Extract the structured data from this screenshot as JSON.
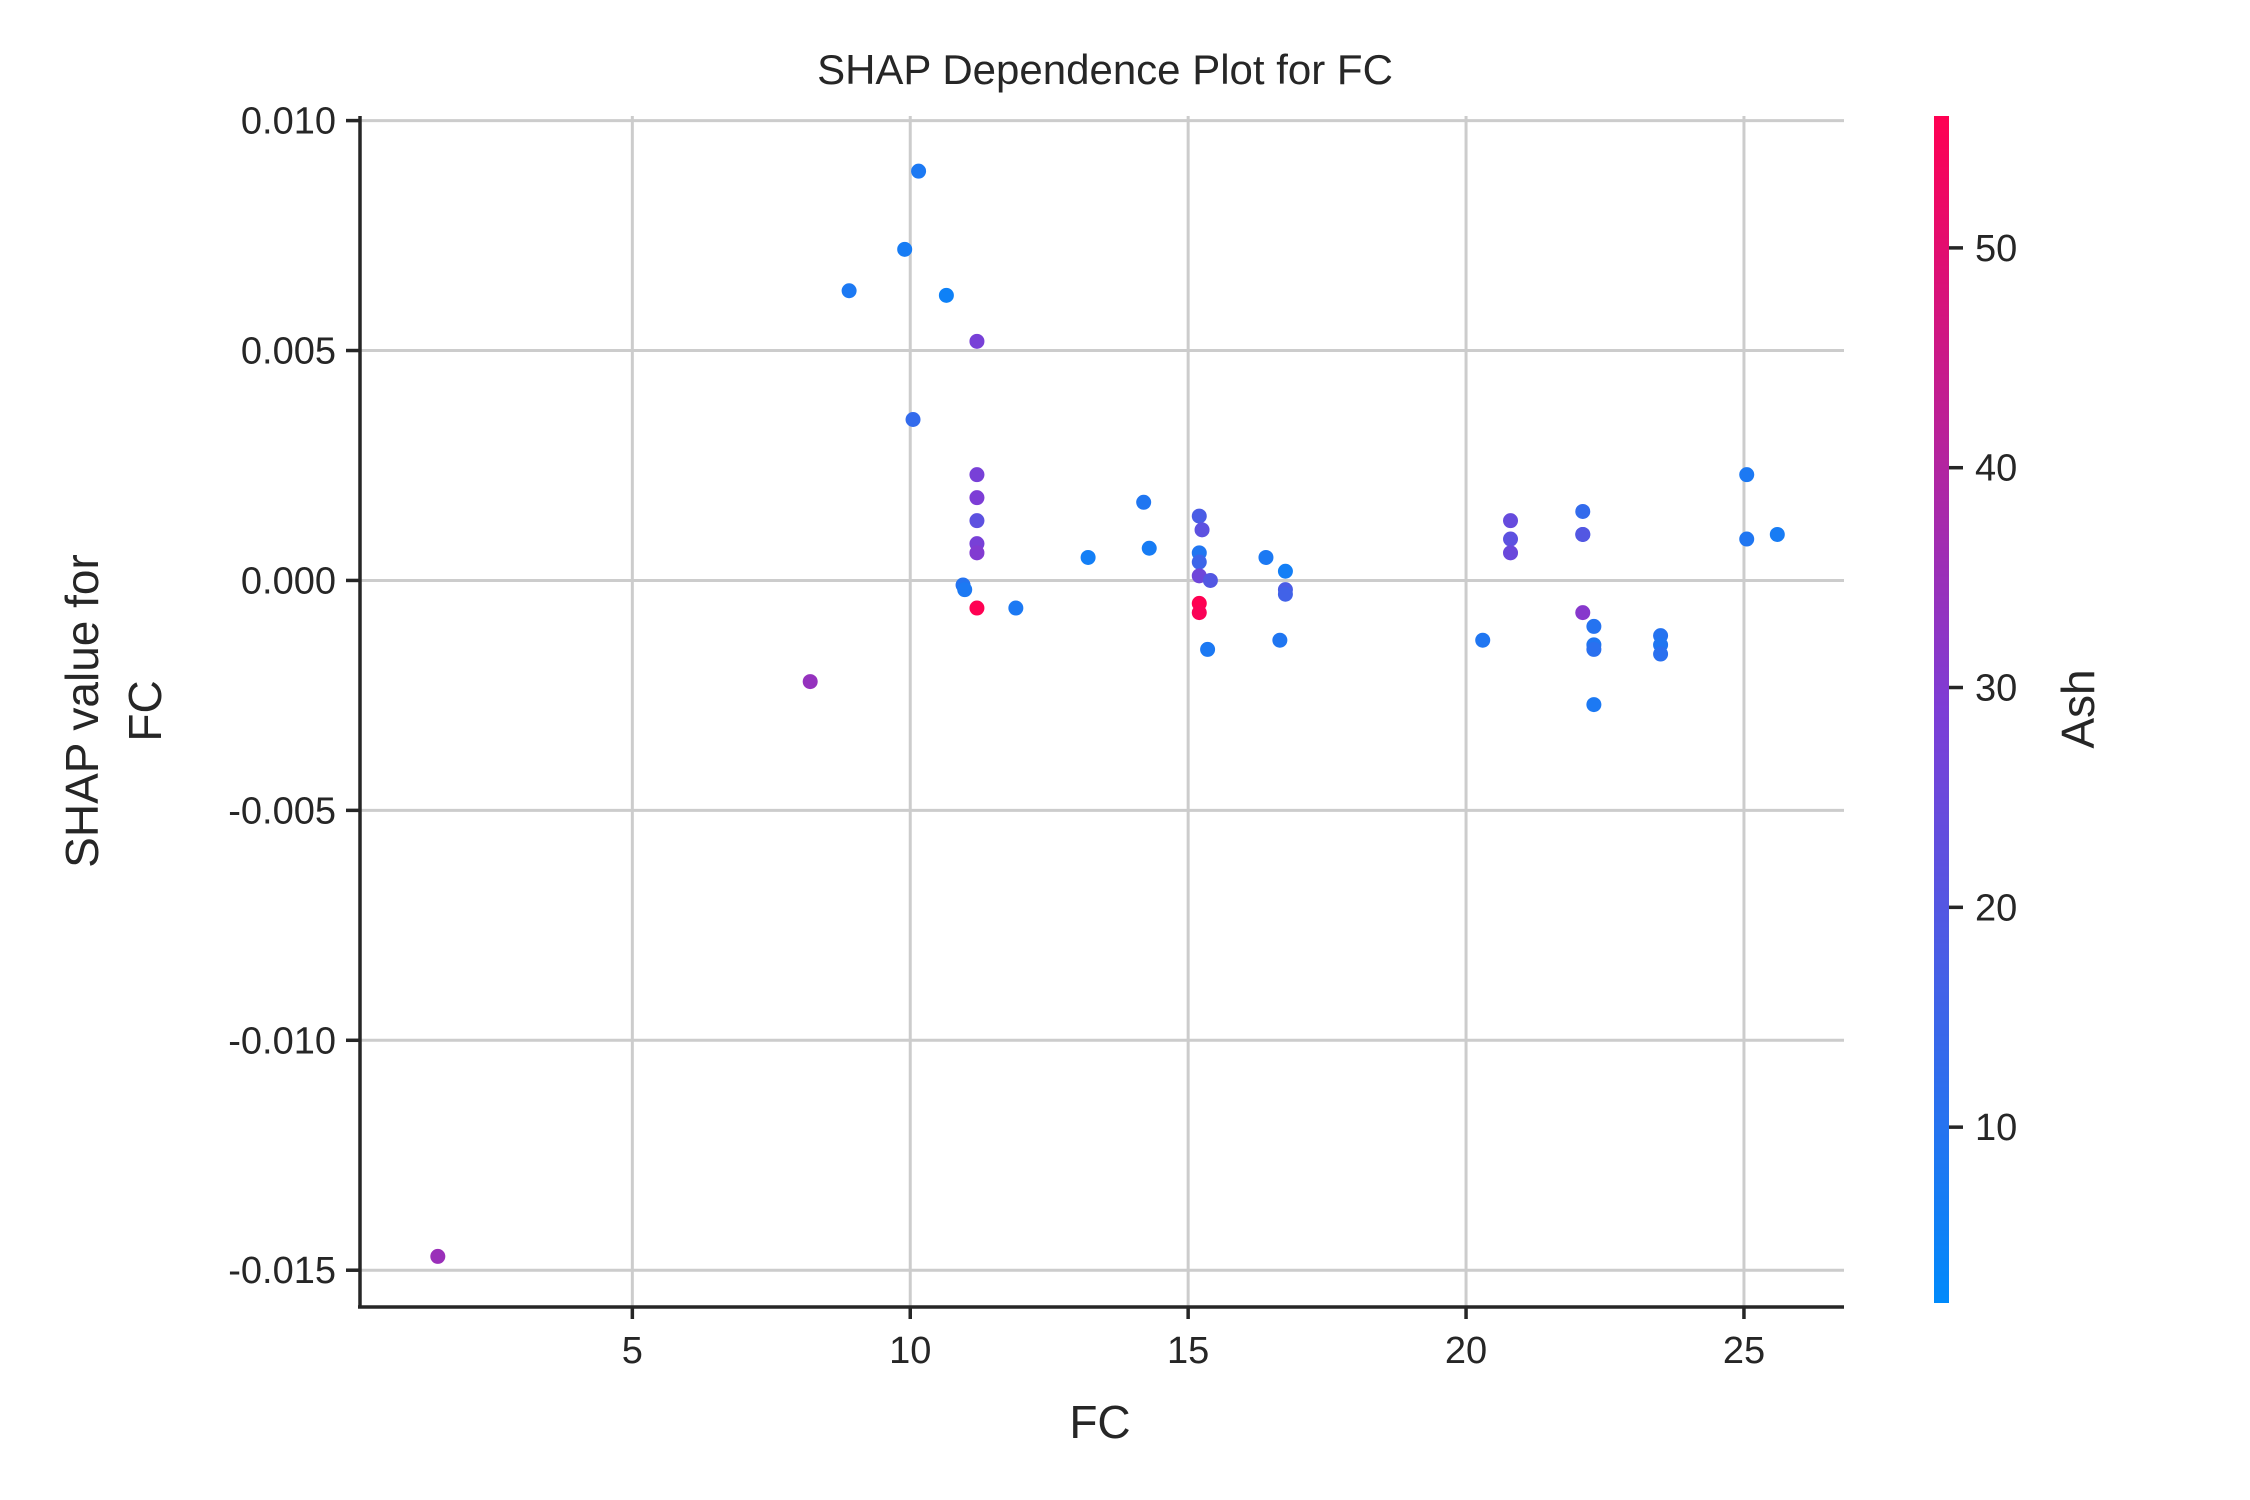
{
  "chart_data": {
    "type": "scatter",
    "title": "SHAP Dependence Plot for FC",
    "xlabel": "FC",
    "ylabel_line1": "SHAP value for",
    "ylabel_line2": "FC",
    "xlim": [
      0.1,
      26.8
    ],
    "ylim": [
      -0.0158,
      0.0101
    ],
    "xticks": [
      5,
      10,
      15,
      20,
      25
    ],
    "xtick_labels": [
      "5",
      "10",
      "15",
      "20",
      "25"
    ],
    "yticks": [
      0.01,
      0.005,
      0.0,
      -0.005,
      -0.01,
      -0.015
    ],
    "ytick_labels": [
      "0.010",
      "0.005",
      "0.000",
      "-0.005",
      "-0.010",
      "-0.015"
    ],
    "grid": true,
    "colorbar": {
      "label": "Ash",
      "range": [
        2,
        56
      ],
      "ticks": [
        10,
        20,
        30,
        40,
        50
      ],
      "tick_labels": [
        "10",
        "20",
        "30",
        "40",
        "50"
      ],
      "color_low": "#008afb",
      "color_mid": "#7d3dd6",
      "color_high": "#ff0052"
    },
    "points": [
      {
        "x": 1.5,
        "y": -0.0147,
        "ash": 35
      },
      {
        "x": 8.2,
        "y": -0.0022,
        "ash": 34
      },
      {
        "x": 8.9,
        "y": 0.0063,
        "ash": 8
      },
      {
        "x": 9.9,
        "y": 0.0072,
        "ash": 7
      },
      {
        "x": 10.05,
        "y": 0.0035,
        "ash": 13
      },
      {
        "x": 10.15,
        "y": 0.0089,
        "ash": 8
      },
      {
        "x": 10.65,
        "y": 0.0062,
        "ash": 5
      },
      {
        "x": 10.95,
        "y": -0.0001,
        "ash": 10
      },
      {
        "x": 10.98,
        "y": -0.0002,
        "ash": 8
      },
      {
        "x": 11.2,
        "y": 0.0052,
        "ash": 28
      },
      {
        "x": 11.2,
        "y": 0.0023,
        "ash": 28
      },
      {
        "x": 11.2,
        "y": 0.0018,
        "ash": 29
      },
      {
        "x": 11.2,
        "y": 0.0013,
        "ash": 22
      },
      {
        "x": 11.2,
        "y": 0.0008,
        "ash": 28
      },
      {
        "x": 11.2,
        "y": 0.0006,
        "ash": 30
      },
      {
        "x": 11.2,
        "y": -0.0006,
        "ash": 56
      },
      {
        "x": 11.9,
        "y": -0.0006,
        "ash": 8
      },
      {
        "x": 13.2,
        "y": 0.0005,
        "ash": 6
      },
      {
        "x": 14.2,
        "y": 0.0017,
        "ash": 9
      },
      {
        "x": 14.3,
        "y": 0.0007,
        "ash": 7
      },
      {
        "x": 15.2,
        "y": 0.0014,
        "ash": 18
      },
      {
        "x": 15.25,
        "y": 0.0011,
        "ash": 22
      },
      {
        "x": 15.2,
        "y": 0.0006,
        "ash": 9
      },
      {
        "x": 15.2,
        "y": 0.0004,
        "ash": 15
      },
      {
        "x": 15.2,
        "y": 0.0001,
        "ash": 26
      },
      {
        "x": 15.2,
        "y": -0.0005,
        "ash": 56
      },
      {
        "x": 15.2,
        "y": -0.0007,
        "ash": 55
      },
      {
        "x": 15.4,
        "y": 0.0,
        "ash": 20
      },
      {
        "x": 15.35,
        "y": -0.0015,
        "ash": 8
      },
      {
        "x": 16.4,
        "y": 0.0005,
        "ash": 8
      },
      {
        "x": 16.65,
        "y": -0.0013,
        "ash": 9
      },
      {
        "x": 16.75,
        "y": 0.0002,
        "ash": 6
      },
      {
        "x": 16.75,
        "y": -0.0002,
        "ash": 18
      },
      {
        "x": 16.75,
        "y": -0.0003,
        "ash": 16
      },
      {
        "x": 20.3,
        "y": -0.0013,
        "ash": 9
      },
      {
        "x": 20.8,
        "y": 0.0013,
        "ash": 24
      },
      {
        "x": 20.8,
        "y": 0.0009,
        "ash": 22
      },
      {
        "x": 20.8,
        "y": 0.0006,
        "ash": 25
      },
      {
        "x": 22.1,
        "y": 0.0015,
        "ash": 13
      },
      {
        "x": 22.1,
        "y": 0.001,
        "ash": 16
      },
      {
        "x": 22.1,
        "y": 0.001,
        "ash": 20
      },
      {
        "x": 22.1,
        "y": -0.0007,
        "ash": 31
      },
      {
        "x": 22.3,
        "y": -0.001,
        "ash": 10
      },
      {
        "x": 22.3,
        "y": -0.0014,
        "ash": 9
      },
      {
        "x": 22.3,
        "y": -0.0015,
        "ash": 11
      },
      {
        "x": 22.3,
        "y": -0.0027,
        "ash": 8
      },
      {
        "x": 23.5,
        "y": -0.0012,
        "ash": 10
      },
      {
        "x": 23.5,
        "y": -0.0014,
        "ash": 9
      },
      {
        "x": 23.5,
        "y": -0.0016,
        "ash": 11
      },
      {
        "x": 25.05,
        "y": 0.0023,
        "ash": 8
      },
      {
        "x": 25.05,
        "y": 0.0009,
        "ash": 9
      },
      {
        "x": 25.6,
        "y": 0.001,
        "ash": 7
      }
    ]
  }
}
